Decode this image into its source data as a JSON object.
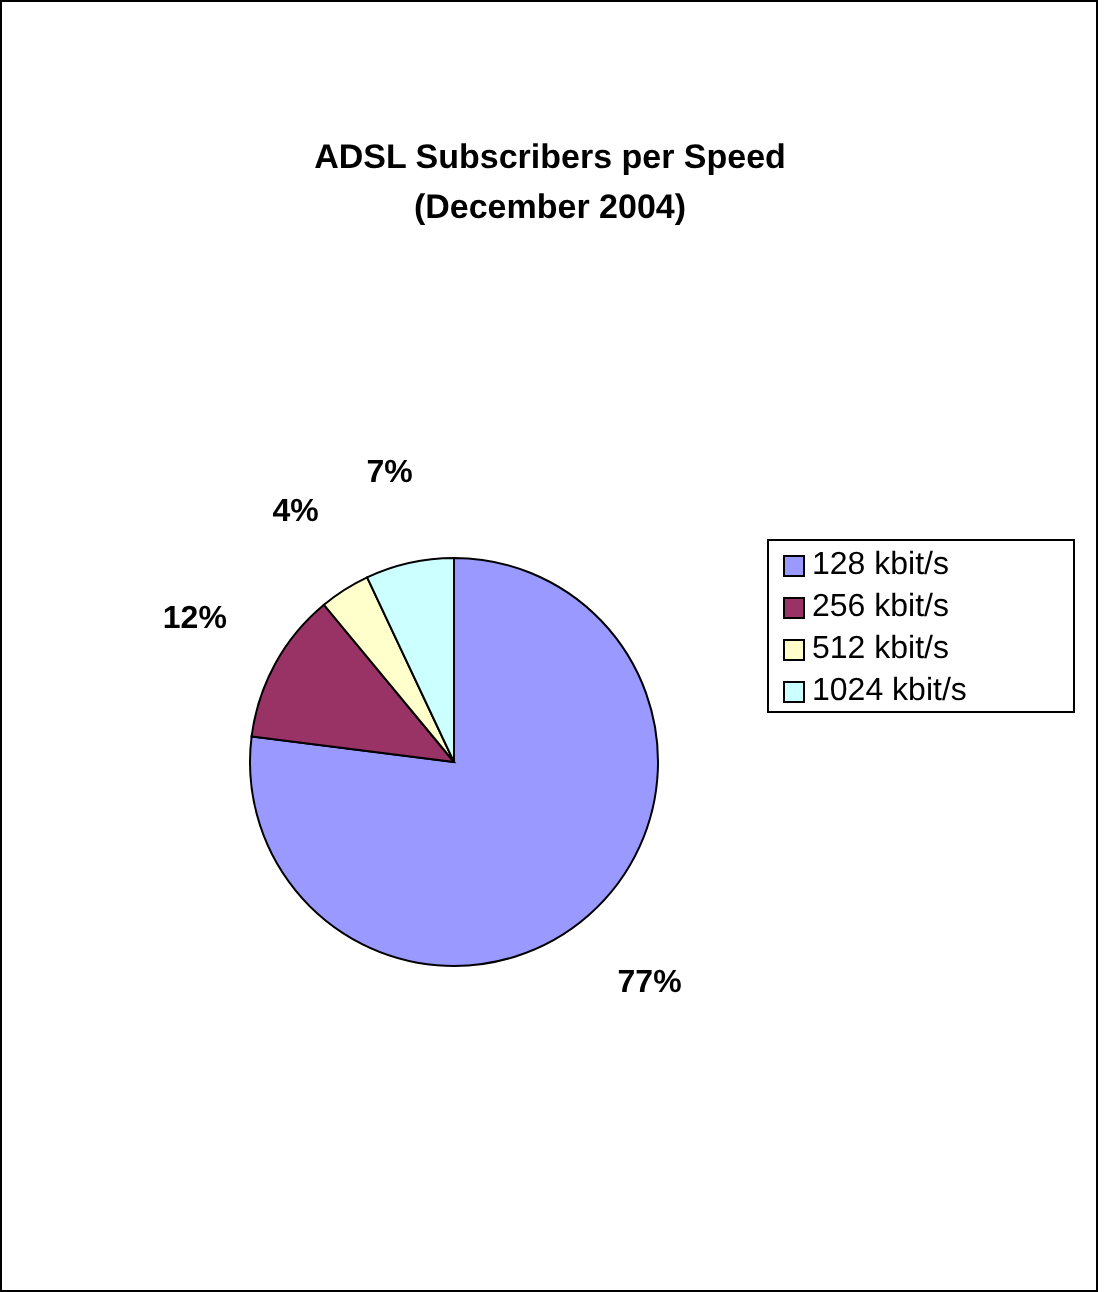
{
  "chart_data": {
    "type": "pie",
    "title": "ADSL Subscribers per Speed\n(December 2004)",
    "categories": [
      "128 kbit/s",
      "256 kbit/s",
      "512 kbit/s",
      "1024 kbit/s"
    ],
    "values": [
      77,
      12,
      4,
      7
    ],
    "colors": [
      "#9999ff",
      "#993366",
      "#ffffcc",
      "#ccffff"
    ],
    "value_labels": [
      "77%",
      "12%",
      "4%",
      "7%"
    ],
    "legend": "right"
  }
}
